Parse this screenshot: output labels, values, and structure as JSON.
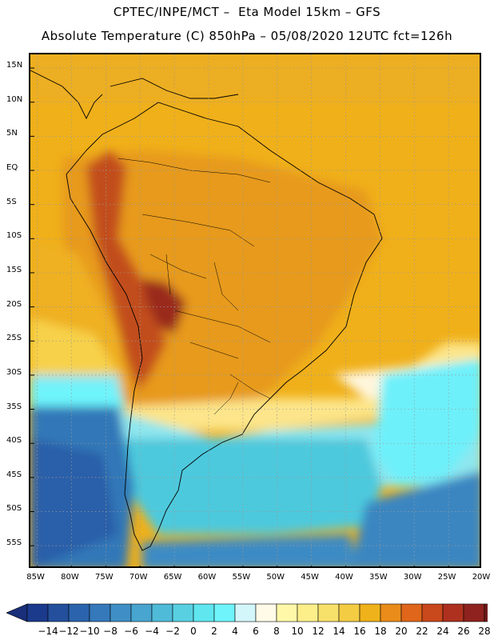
{
  "header": {
    "line1": "CPTEC/INPE/MCT –  Eta Model 15km – GFS",
    "line2": "Absolute Temperature (C) 850hPa – 05/08/2020 12UTC fct=126h"
  },
  "map": {
    "lon_range": [
      -86,
      -20
    ],
    "lat_range": [
      -58.5,
      17
    ],
    "lat_ticks": [
      {
        "value": 15,
        "label": "15N"
      },
      {
        "value": 10,
        "label": "10N"
      },
      {
        "value": 5,
        "label": "5N"
      },
      {
        "value": 0,
        "label": "EQ"
      },
      {
        "value": -5,
        "label": "5S"
      },
      {
        "value": -10,
        "label": "10S"
      },
      {
        "value": -15,
        "label": "15S"
      },
      {
        "value": -20,
        "label": "20S"
      },
      {
        "value": -25,
        "label": "25S"
      },
      {
        "value": -30,
        "label": "30S"
      },
      {
        "value": -35,
        "label": "35S"
      },
      {
        "value": -40,
        "label": "40S"
      },
      {
        "value": -45,
        "label": "45S"
      },
      {
        "value": -50,
        "label": "50S"
      },
      {
        "value": -55,
        "label": "55S"
      }
    ],
    "lon_ticks": [
      {
        "value": -85,
        "label": "85W"
      },
      {
        "value": -80,
        "label": "80W"
      },
      {
        "value": -75,
        "label": "75W"
      },
      {
        "value": -70,
        "label": "70W"
      },
      {
        "value": -65,
        "label": "65W"
      },
      {
        "value": -60,
        "label": "60W"
      },
      {
        "value": -55,
        "label": "55W"
      },
      {
        "value": -50,
        "label": "50W"
      },
      {
        "value": -45,
        "label": "45W"
      },
      {
        "value": -40,
        "label": "40W"
      },
      {
        "value": -35,
        "label": "35W"
      },
      {
        "value": -30,
        "label": "30W"
      },
      {
        "value": -25,
        "label": "25W"
      },
      {
        "value": -20,
        "label": "20W"
      }
    ]
  },
  "legend": {
    "labels": [
      "-14",
      "-12",
      "-10",
      "-8",
      "-6",
      "-4",
      "-2",
      "0",
      "2",
      "4",
      "6",
      "8",
      "10",
      "12",
      "14",
      "16",
      "18",
      "20",
      "22",
      "24",
      "26",
      "28"
    ],
    "colors": [
      "#1b3a8c",
      "#244f9c",
      "#2b64ad",
      "#3579bb",
      "#3f8fc6",
      "#48a5cf",
      "#4fbbd8",
      "#58d0e2",
      "#5fe6ef",
      "#6ff4fb",
      "#d3f6fb",
      "#fffbe8",
      "#fff8a8",
      "#fcef8a",
      "#f8e16a",
      "#f3cc44",
      "#efb21a",
      "#e98c1a",
      "#df661a",
      "#c9481c",
      "#ad311e",
      "#8f221e",
      "#701a1a"
    ],
    "under_color": "#1a2f7a",
    "over_color": "#5a0f1a"
  }
}
